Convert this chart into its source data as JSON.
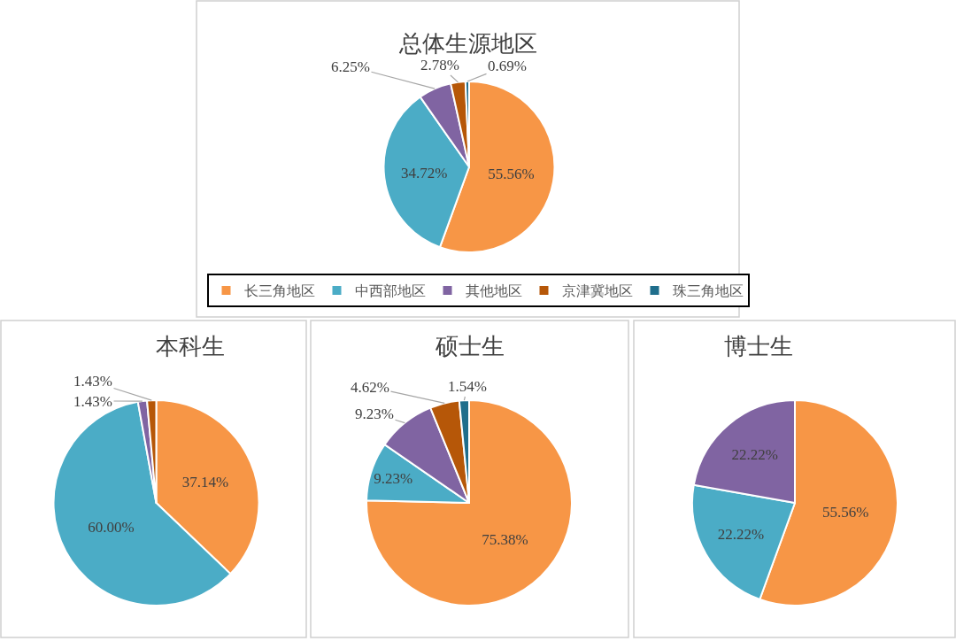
{
  "chart_data": [
    {
      "type": "pie",
      "title": "总体生源地区",
      "categories": [
        "长三角地区",
        "中西部地区",
        "其他地区",
        "京津冀地区",
        "珠三角地区"
      ],
      "values": [
        55.56,
        34.72,
        6.25,
        2.78,
        0.69
      ],
      "value_labels": [
        "55.56%",
        "34.72%",
        "6.25%",
        "2.78%",
        "0.69%"
      ],
      "colors": [
        "#f79646",
        "#4bacc6",
        "#8064a2",
        "#b65708",
        "#1f6e8c"
      ],
      "legend": "bottom"
    },
    {
      "type": "pie",
      "title": "本科生",
      "categories": [
        null,
        null,
        null,
        null
      ],
      "values": [
        37.14,
        60.0,
        1.43,
        1.43
      ],
      "value_labels": [
        "37.14%",
        "60.00%",
        "1.43%",
        "1.43%"
      ],
      "colors": [
        "#f79646",
        "#4bacc6",
        "#8064a2",
        "#b65708"
      ]
    },
    {
      "type": "pie",
      "title": "硕士生",
      "categories": [
        null,
        null,
        null,
        null,
        null
      ],
      "values": [
        75.38,
        9.23,
        9.23,
        4.62,
        1.54
      ],
      "value_labels": [
        "75.38%",
        "9.23%",
        "9.23%",
        "4.62%",
        "1.54%"
      ],
      "colors": [
        "#f79646",
        "#4bacc6",
        "#8064a2",
        "#b65708",
        "#1f6e8c"
      ]
    },
    {
      "type": "pie",
      "title": "博士生",
      "categories": [
        null,
        null,
        null
      ],
      "values": [
        55.56,
        22.22,
        22.22
      ],
      "value_labels": [
        "55.56%",
        "22.22%",
        "22.22%"
      ],
      "colors": [
        "#f79646",
        "#4bacc6",
        "#8064a2"
      ]
    }
  ]
}
